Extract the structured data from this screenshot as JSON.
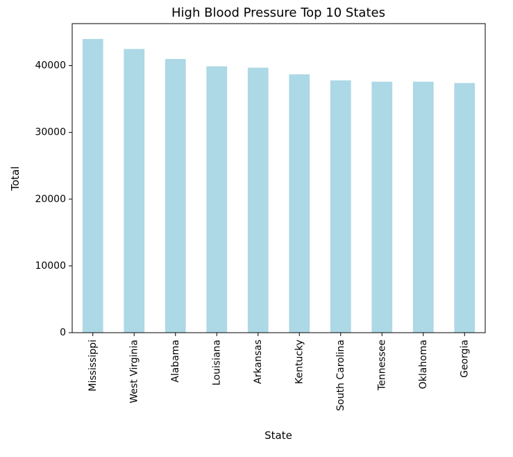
{
  "chart_data": {
    "type": "bar",
    "title": "High Blood Pressure Top 10 States",
    "xlabel": "State",
    "ylabel": "Total",
    "categories": [
      "Mississippi",
      "West Virginia",
      "Alabama",
      "Louisiana",
      "Arkansas",
      "Kentucky",
      "South Carolina",
      "Tennessee",
      "Oklahoma",
      "Georgia"
    ],
    "values": [
      44000,
      42500,
      41000,
      39900,
      39700,
      38700,
      37800,
      37600,
      37600,
      37400
    ],
    "ylim": [
      0,
      46300
    ],
    "yticks": [
      0,
      10000,
      20000,
      30000,
      40000
    ],
    "ytick_labels": [
      "0",
      "10000",
      "20000",
      "30000",
      "40000"
    ],
    "grid": false,
    "bar_color": "#add8e6"
  }
}
